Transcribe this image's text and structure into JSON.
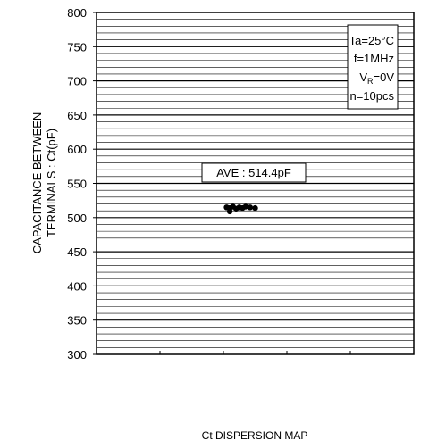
{
  "chart_data": {
    "type": "scatter",
    "title": "",
    "xlabel": "Ct DISPERSION MAP",
    "ylabel_line1": "CAPACITANCE BETWEEN",
    "ylabel_line2": "TERMINALS : Ct(pF)",
    "ylim": [
      300,
      800
    ],
    "yticks": [
      300,
      350,
      400,
      450,
      500,
      550,
      600,
      650,
      700,
      750,
      800
    ],
    "ytick_labels": [
      "300",
      "350",
      "400",
      "450",
      "500",
      "550",
      "600",
      "650",
      "700",
      "750",
      "800"
    ],
    "minor_grid_step": 10,
    "grid": true,
    "x_divisions": 5,
    "series": [
      {
        "x": [
          2.05,
          2.1,
          2.15,
          2.2,
          2.25,
          2.3,
          2.35,
          2.42,
          2.5,
          2.1
        ],
        "y": [
          515,
          514,
          516,
          513,
          515,
          514,
          516,
          515,
          514,
          509
        ]
      }
    ],
    "average_label": "AVE : 514.4pF",
    "conditions": {
      "temp": "Ta=25°C",
      "freq": "f=1MHz",
      "vr_prefix": "V",
      "vr_sub": "R",
      "vr_suffix": "=0V",
      "count": "n=10pcs"
    }
  }
}
